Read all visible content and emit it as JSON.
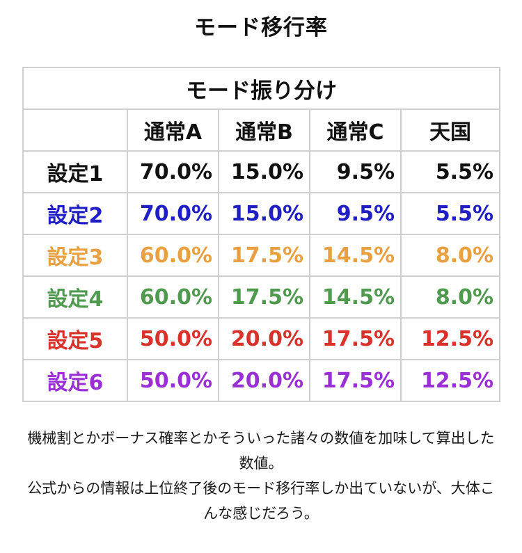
{
  "page": {
    "title": "モード移行率"
  },
  "table": {
    "caption": "モード振り分け",
    "headers": [
      "",
      "通常A",
      "通常B",
      "通常C",
      "天国"
    ],
    "rows": [
      {
        "label": "設定1",
        "values": [
          "70.0%",
          "15.0%",
          "9.5%",
          "5.5%"
        ],
        "color": "#111111"
      },
      {
        "label": "設定2",
        "values": [
          "70.0%",
          "15.0%",
          "9.5%",
          "5.5%"
        ],
        "color": "#1f1fc4"
      },
      {
        "label": "設定3",
        "values": [
          "60.0%",
          "17.5%",
          "14.5%",
          "8.0%"
        ],
        "color": "#e8a040"
      },
      {
        "label": "設定4",
        "values": [
          "60.0%",
          "17.5%",
          "14.5%",
          "8.0%"
        ],
        "color": "#4f9a4f"
      },
      {
        "label": "設定5",
        "values": [
          "50.0%",
          "20.0%",
          "17.5%",
          "12.5%"
        ],
        "color": "#d8322a"
      },
      {
        "label": "設定6",
        "values": [
          "50.0%",
          "20.0%",
          "17.5%",
          "12.5%"
        ],
        "color": "#9a2fd6"
      }
    ]
  },
  "notes": {
    "paragraph1": "機械割とかボーナス確率とかそういった諸々の数値を加味して算出した数値。",
    "paragraph2": "公式からの情報は上位終了後のモード移行率しか出ていないが、大体こんな感じだろう。"
  }
}
